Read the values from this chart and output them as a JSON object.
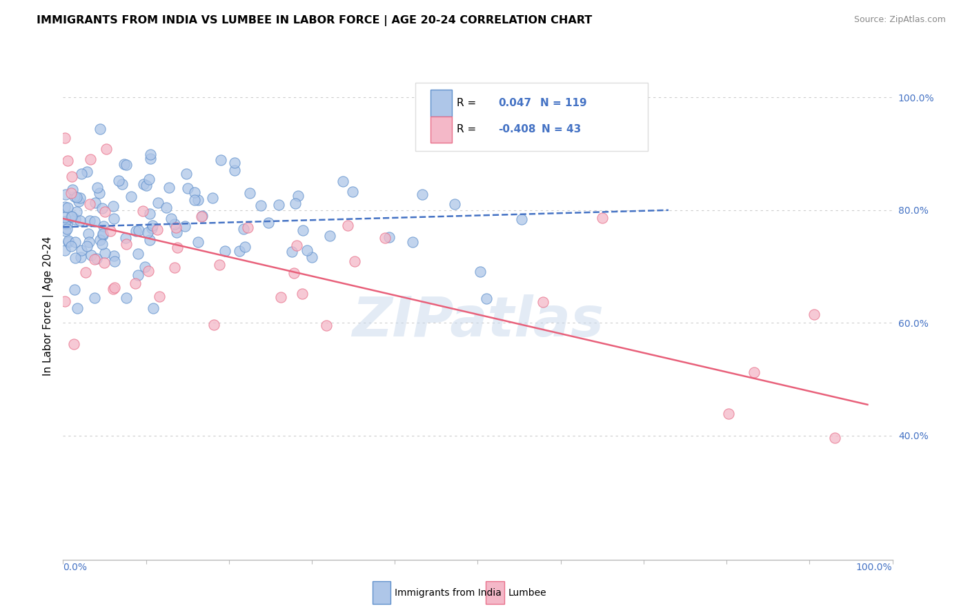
{
  "title": "IMMIGRANTS FROM INDIA VS LUMBEE IN LABOR FORCE | AGE 20-24 CORRELATION CHART",
  "source": "Source: ZipAtlas.com",
  "ylabel": "In Labor Force | Age 20-24",
  "ylabel_right_ticks": [
    0.4,
    0.6,
    0.8,
    1.0
  ],
  "ylabel_right_labels": [
    "40.0%",
    "60.0%",
    "80.0%",
    "100.0%"
  ],
  "blue_R": 0.047,
  "blue_N": 119,
  "pink_R": -0.408,
  "pink_N": 43,
  "blue_label": "Immigrants from India",
  "pink_label": "Lumbee",
  "blue_face_color": "#aec6e8",
  "pink_face_color": "#f4b8c8",
  "blue_edge_color": "#6090cc",
  "pink_edge_color": "#e8708a",
  "blue_line_color": "#4472c4",
  "pink_line_color": "#e8607a",
  "background_color": "#ffffff",
  "grid_color": "#cccccc",
  "watermark": "ZIPatlas",
  "xlim": [
    0.0,
    1.0
  ],
  "ylim": [
    0.18,
    1.08
  ],
  "blue_trend_x": [
    0.0,
    0.73
  ],
  "blue_trend_y": [
    0.77,
    0.8
  ],
  "pink_trend_x": [
    0.0,
    0.97
  ],
  "pink_trend_y": [
    0.785,
    0.455
  ]
}
